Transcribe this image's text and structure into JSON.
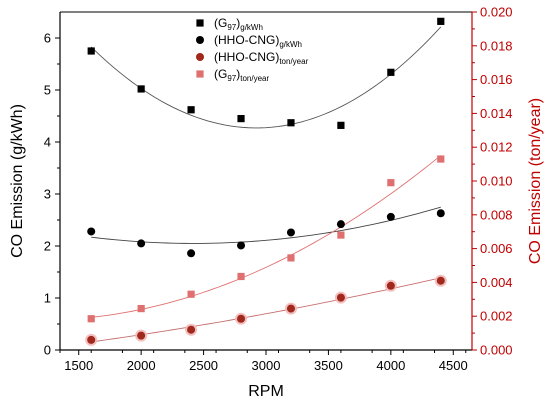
{
  "chart_data": {
    "type": "scatter",
    "xlabel": "RPM",
    "ylabel_left": "CO Emission (g/kWh)",
    "ylabel_right": "CO Emission (ton/year)",
    "xlim": [
      1350,
      4650
    ],
    "xticks": [
      1500,
      2000,
      2500,
      3000,
      3500,
      4000,
      4500
    ],
    "ylim_left": [
      0,
      6.5
    ],
    "yticks_left": [
      0,
      1,
      2,
      3,
      4,
      5,
      6
    ],
    "ylim_right": [
      0,
      0.02
    ],
    "yticks_right": [
      0.0,
      0.002,
      0.004,
      0.006,
      0.008,
      0.01,
      0.012,
      0.014,
      0.016,
      0.018,
      0.02
    ],
    "yticks_right_labels": [
      "0.000",
      "0.002",
      "0.004",
      "0.006",
      "0.008",
      "0.010",
      "0.012",
      "0.014",
      "0.016",
      "0.018",
      "0.020"
    ],
    "x": [
      1600,
      2000,
      2400,
      2800,
      3200,
      3600,
      4000,
      4400
    ],
    "legend_position": "top-center",
    "grid": false,
    "colors": {
      "left_axis": "#000000",
      "right_axis": "#c00000",
      "g97_ton_marker": "#e07070",
      "hho_ton_marker": "#a0281c"
    },
    "series": [
      {
        "name_main": "(G",
        "name_sub1": "97",
        "name_close": ")",
        "name_sub2": "g/kWh",
        "axis": "left",
        "marker": "square",
        "color": "#000000",
        "fit_color": "#555555",
        "values": [
          5.75,
          5.02,
          4.62,
          4.45,
          4.37,
          4.32,
          5.34,
          6.32
        ]
      },
      {
        "name_main": "(HHO-CNG)",
        "name_sub1": "",
        "name_close": "",
        "name_sub2": "g/kWh",
        "axis": "left",
        "marker": "circle",
        "color": "#000000",
        "fit_color": "#444444",
        "values": [
          2.28,
          2.05,
          1.86,
          2.01,
          2.26,
          2.42,
          2.56,
          2.63
        ]
      },
      {
        "name_main": "(HHO-CNG)",
        "name_sub1": "",
        "name_close": "",
        "name_sub2": "ton/year",
        "axis": "right",
        "marker": "circle",
        "color": "#a0281c",
        "fit_color": "#c87070",
        "values": [
          0.0006,
          0.00085,
          0.0012,
          0.00185,
          0.00245,
          0.0031,
          0.0038,
          0.0041
        ]
      },
      {
        "name_main": "(G",
        "name_sub1": "97",
        "name_close": ")",
        "name_sub2": "ton/year",
        "axis": "right",
        "marker": "square",
        "color": "#e07070",
        "fit_color": "#e07070",
        "values": [
          0.00185,
          0.00245,
          0.0033,
          0.00435,
          0.00545,
          0.0068,
          0.0099,
          0.0113
        ]
      }
    ]
  }
}
